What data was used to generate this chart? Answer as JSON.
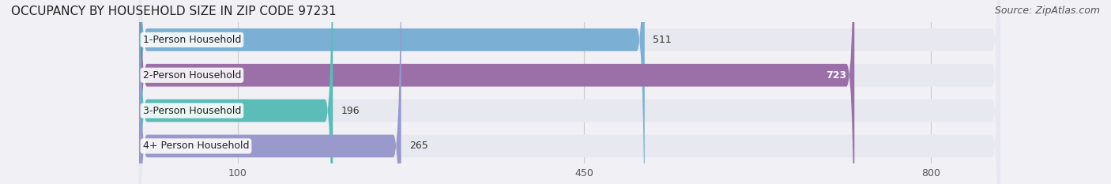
{
  "title": "OCCUPANCY BY HOUSEHOLD SIZE IN ZIP CODE 97231",
  "source": "Source: ZipAtlas.com",
  "categories": [
    "1-Person Household",
    "2-Person Household",
    "3-Person Household",
    "4+ Person Household"
  ],
  "values": [
    511,
    723,
    196,
    265
  ],
  "bar_colors": [
    "#7bafd4",
    "#9b6fa8",
    "#5bbcb8",
    "#9999cc"
  ],
  "bar_bg_color": "#e8e8f0",
  "xticks": [
    100,
    450,
    800
  ],
  "xlim": [
    0,
    870
  ],
  "value_label_colors": [
    "#444444",
    "#ffffff",
    "#444444",
    "#444444"
  ],
  "title_fontsize": 11,
  "source_fontsize": 9,
  "bar_label_fontsize": 9,
  "value_fontsize": 9,
  "tick_fontsize": 9,
  "bar_height": 0.62,
  "background_color": "#f0f0f5"
}
